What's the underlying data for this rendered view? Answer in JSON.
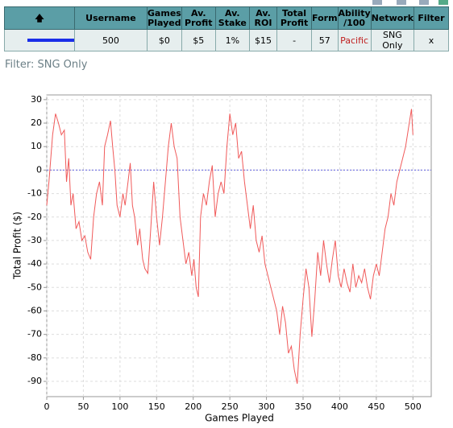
{
  "table": {
    "headers": [
      "Username",
      "Games Played",
      "Av. Profit",
      "Av. Stake",
      "Av. ROI",
      "Total Profit",
      "Form",
      "Ability /100",
      "Network",
      "Filter"
    ],
    "rows": [
      [
        "500",
        "$0",
        "$5",
        "1%",
        "$15",
        "-",
        "57",
        "Pacific",
        "SNG Only",
        "x"
      ]
    ]
  },
  "filter_label": "Filter: SNG Only",
  "chart_data": {
    "type": "line",
    "xlabel": "Games Played",
    "ylabel": "Total Profit ($)",
    "color": "#f05a5a",
    "x": [
      0,
      3,
      8,
      12,
      16,
      20,
      24,
      27,
      30,
      33,
      36,
      40,
      44,
      48,
      52,
      56,
      60,
      64,
      68,
      72,
      76,
      79,
      83,
      87,
      90,
      93,
      96,
      100,
      104,
      107,
      111,
      114,
      117,
      120,
      124,
      127,
      131,
      134,
      138,
      142,
      146,
      150,
      154,
      158,
      162,
      166,
      170,
      174,
      178,
      182,
      186,
      190,
      194,
      198,
      201,
      204,
      207,
      210,
      214,
      218,
      222,
      226,
      230,
      234,
      238,
      242,
      246,
      250,
      254,
      258,
      262,
      266,
      270,
      274,
      278,
      282,
      286,
      290,
      294,
      298,
      302,
      306,
      310,
      314,
      318,
      322,
      326,
      330,
      334,
      338,
      342,
      346,
      350,
      354,
      358,
      362,
      366,
      370,
      374,
      378,
      382,
      386,
      390,
      394,
      398,
      402,
      406,
      410,
      414,
      418,
      422,
      426,
      430,
      434,
      438,
      442,
      446,
      450,
      454,
      458,
      462,
      466,
      470,
      474,
      478,
      482,
      486,
      490,
      494,
      498,
      500
    ],
    "values": [
      -15,
      -5,
      15,
      24,
      20,
      15,
      17,
      -5,
      5,
      -15,
      -10,
      -25,
      -22,
      -30,
      -28,
      -35,
      -38,
      -20,
      -10,
      -5,
      -15,
      10,
      15,
      21,
      10,
      0,
      -15,
      -20,
      -10,
      -15,
      -5,
      3,
      -15,
      -20,
      -32,
      -25,
      -38,
      -42,
      -44,
      -25,
      -5,
      -20,
      -32,
      -20,
      -5,
      10,
      20,
      10,
      5,
      -20,
      -30,
      -40,
      -35,
      -45,
      -38,
      -50,
      -54,
      -20,
      -10,
      -15,
      -5,
      2,
      -20,
      -10,
      -5,
      -10,
      10,
      24,
      15,
      20,
      5,
      8,
      -5,
      -15,
      -25,
      -15,
      -30,
      -35,
      -28,
      -40,
      -45,
      -50,
      -55,
      -60,
      -70,
      -58,
      -65,
      -78,
      -75,
      -85,
      -91,
      -70,
      -55,
      -42,
      -50,
      -71,
      -55,
      -35,
      -45,
      -30,
      -40,
      -48,
      -38,
      -30,
      -45,
      -50,
      -42,
      -48,
      -52,
      -40,
      -50,
      -45,
      -48,
      -42,
      -50,
      -55,
      -45,
      -40,
      -45,
      -35,
      -25,
      -20,
      -10,
      -15,
      -5,
      0,
      5,
      10,
      18,
      26,
      15
    ],
    "xlim": [
      0,
      525
    ],
    "ylim": [
      -96.5,
      32
    ],
    "xticks": [
      0,
      50,
      100,
      150,
      200,
      250,
      300,
      350,
      400,
      450,
      500
    ],
    "yticks": [
      -90,
      -80,
      -70,
      -60,
      -50,
      -40,
      -30,
      -20,
      -10,
      0,
      10,
      20,
      30
    ],
    "grid": true,
    "hline": 0,
    "hline_color": "#6060e0"
  }
}
